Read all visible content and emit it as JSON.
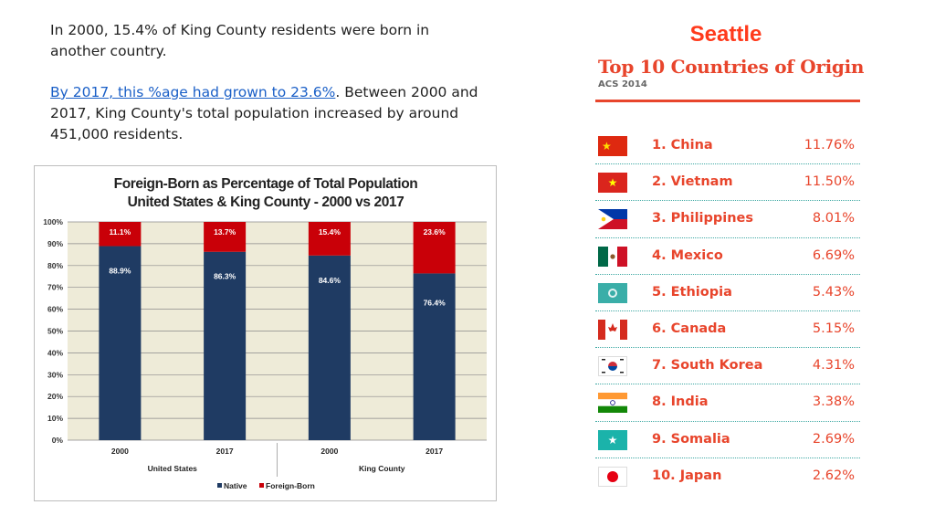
{
  "intro": {
    "para1": "In 2000, 15.4% of King County residents were born in another country.",
    "link_text": "By 2017, this %age had grown to 23.6%",
    "para2_rest": ". Between 2000 and 2017, King County's total population increased by around 451,000 residents."
  },
  "chart_data": {
    "type": "bar",
    "title": "Foreign-Born as Percentage of Total Population United States & King County - 2000 vs 2017",
    "categories": [
      "2000",
      "2017",
      "2000",
      "2017"
    ],
    "groups": [
      "United States",
      "King County"
    ],
    "stacked": true,
    "series": [
      {
        "name": "Native",
        "color": "#1f3b63",
        "values": [
          88.9,
          86.3,
          84.6,
          76.4
        ]
      },
      {
        "name": "Foreign-Born",
        "color": "#c90008",
        "values": [
          11.1,
          13.7,
          15.4,
          23.6
        ]
      }
    ],
    "data_labels": {
      "native": [
        "88.9%",
        "86.3%",
        "84.6%",
        "76.4%"
      ],
      "foreign": [
        "11.1%",
        "13.7%",
        "15.4%",
        "23.6%"
      ]
    },
    "yticks": [
      "0%",
      "10%",
      "20%",
      "30%",
      "40%",
      "50%",
      "60%",
      "70%",
      "80%",
      "90%",
      "100%"
    ],
    "ylim": [
      0,
      100
    ],
    "grid": true,
    "legend_position": "bottom",
    "plot_background": "#eeebd8"
  },
  "panel": {
    "city": "Seattle",
    "title": "Top 10 Countries of Origin",
    "subtitle": "ACS 2014",
    "accent_color": "#e8452c",
    "items": [
      {
        "name": "1. China",
        "percent": "11.76%",
        "flag": "china-flag-icon"
      },
      {
        "name": "2. Vietnam",
        "percent": "11.50%",
        "flag": "vietnam-flag-icon"
      },
      {
        "name": "3. Philippines",
        "percent": "8.01%",
        "flag": "philippines-flag-icon"
      },
      {
        "name": "4. Mexico",
        "percent": "6.69%",
        "flag": "mexico-flag-icon"
      },
      {
        "name": "5. Ethiopia",
        "percent": "5.43%",
        "flag": "ethiopia-flag-icon"
      },
      {
        "name": "6. Canada",
        "percent": "5.15%",
        "flag": "canada-flag-icon"
      },
      {
        "name": "7. South Korea",
        "percent": "4.31%",
        "flag": "south-korea-flag-icon"
      },
      {
        "name": "8. India",
        "percent": "3.38%",
        "flag": "india-flag-icon"
      },
      {
        "name": "9. Somalia",
        "percent": "2.69%",
        "flag": "somalia-flag-icon"
      },
      {
        "name": "10. Japan",
        "percent": "2.62%",
        "flag": "japan-flag-icon"
      }
    ]
  }
}
